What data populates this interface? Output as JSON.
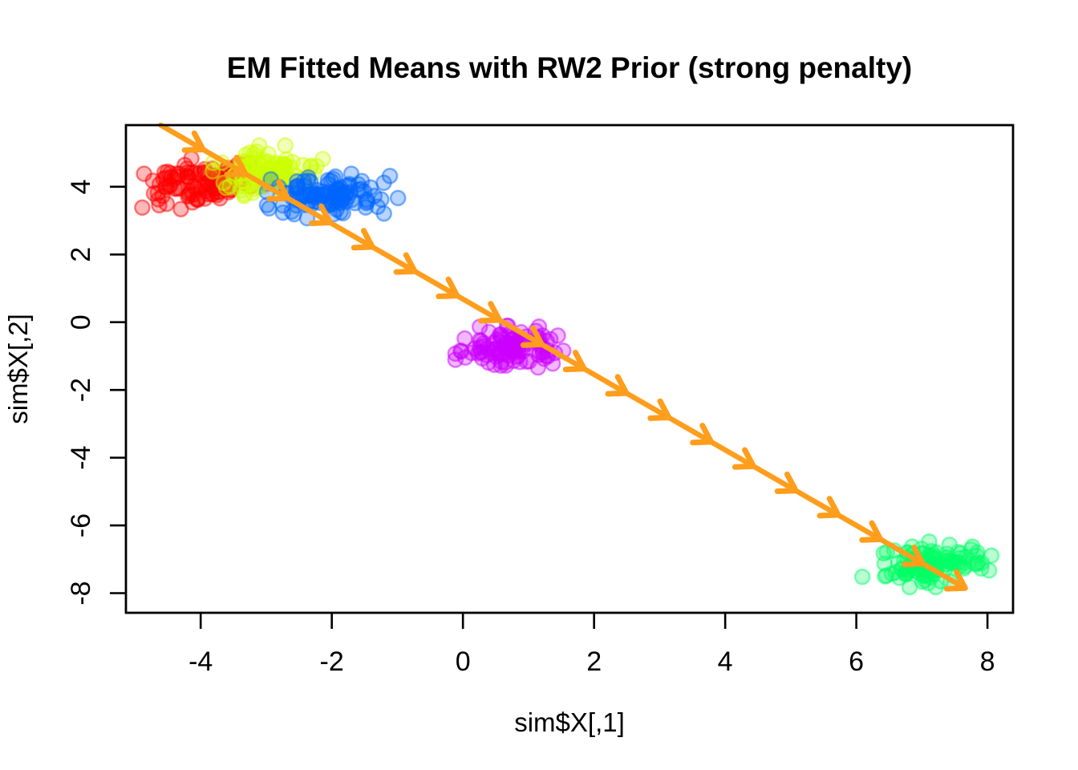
{
  "figure": {
    "background": "#FFFFFF",
    "axis_color": "#000000"
  },
  "chart_data": {
    "type": "scatter",
    "title": "EM Fitted Means with RW2 Prior (strong penalty)",
    "xlabel": "sim$X[,1]",
    "ylabel": "sim$X[,2]",
    "x_ticks": [
      -4,
      -2,
      0,
      2,
      4,
      6,
      8
    ],
    "y_ticks": [
      4,
      2,
      0,
      -2,
      -4,
      -6,
      -8
    ],
    "xlim": [
      -5.14,
      8.39
    ],
    "ylim": [
      -8.58,
      5.82
    ],
    "grid": false,
    "legend": "none",
    "clusters": [
      {
        "name": "cluster-red",
        "color": "#FF0000",
        "center": [
          -4.0,
          4.1
        ],
        "sd": [
          0.42,
          0.32
        ],
        "n": 100,
        "seed": 101
      },
      {
        "name": "cluster-chartreuse",
        "color": "#CCFF00",
        "center": [
          -3.05,
          4.45
        ],
        "sd": [
          0.38,
          0.32
        ],
        "n": 100,
        "seed": 202
      },
      {
        "name": "cluster-blue",
        "color": "#0066FF",
        "center": [
          -1.98,
          3.74
        ],
        "sd": [
          0.42,
          0.28
        ],
        "n": 110,
        "seed": 303
      },
      {
        "name": "cluster-magenta",
        "color": "#CC00FF",
        "center": [
          0.75,
          -0.78
        ],
        "sd": [
          0.36,
          0.28
        ],
        "n": 110,
        "seed": 404
      },
      {
        "name": "cluster-green",
        "color": "#00FF66",
        "center": [
          7.1,
          -7.15
        ],
        "sd": [
          0.42,
          0.28
        ],
        "n": 110,
        "seed": 505
      }
    ],
    "mean_path": {
      "description": "EM fitted means trajectory, straight line under strong RW2 penalty",
      "color": "#FF9D1C",
      "start": [
        -4.61,
        5.82
      ],
      "end": [
        7.66,
        -7.85
      ],
      "arrow_count": 19
    }
  }
}
